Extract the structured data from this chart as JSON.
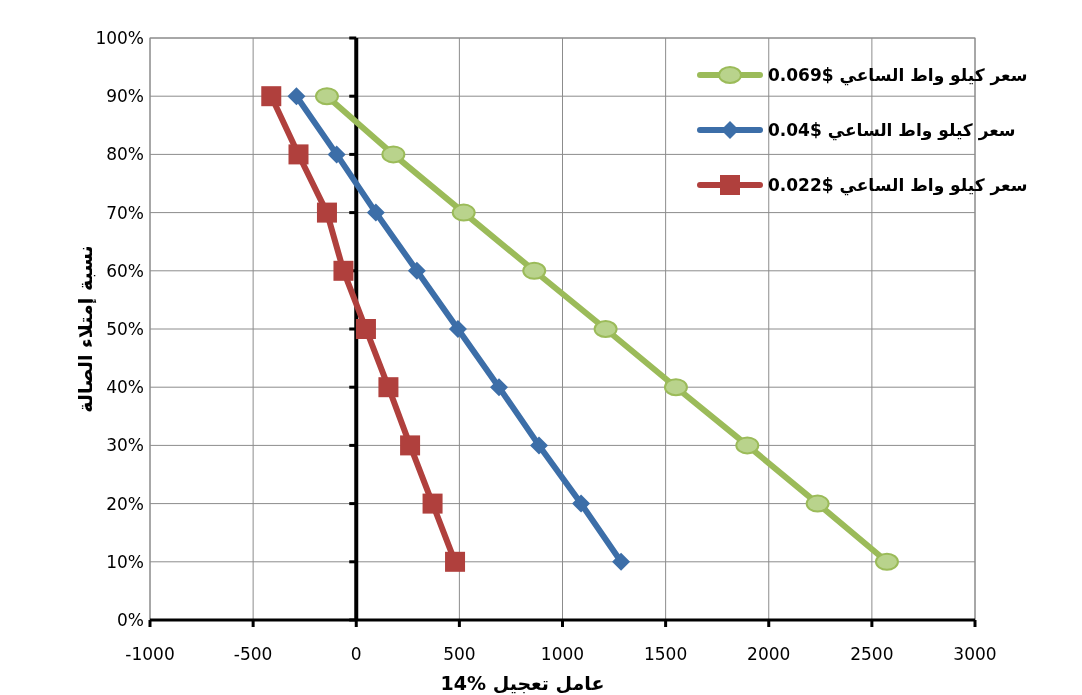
{
  "chart_data": {
    "type": "line",
    "xlabel": "عامل تعجيل %14",
    "ylabel": "نسبة إمتلاء الصالة",
    "xlim": [
      -1000,
      3000
    ],
    "xticks": [
      -1000,
      -500,
      0,
      500,
      1000,
      1500,
      2000,
      2500,
      3000
    ],
    "ylim": [
      0,
      100
    ],
    "yticks": [
      {
        "value": 0,
        "label": "0%"
      },
      {
        "value": 10,
        "label": "10%"
      },
      {
        "value": 20,
        "label": "20%"
      },
      {
        "value": 30,
        "label": "30%"
      },
      {
        "value": 40,
        "label": "40%"
      },
      {
        "value": 50,
        "label": "50%"
      },
      {
        "value": 60,
        "label": "60%"
      },
      {
        "value": 70,
        "label": "70%"
      },
      {
        "value": 80,
        "label": "80%"
      },
      {
        "value": 90,
        "label": "90%"
      },
      {
        "value": 100,
        "label": "100%"
      }
    ],
    "grid": true,
    "legend": "top right",
    "series": [
      {
        "name": "سعر كيلو واط الساعي $0.069",
        "color": "#9bbb59",
        "marker": "circle",
        "x": [
          -142,
          180,
          521,
          863,
          1209,
          1550,
          1896,
          2237,
          2573
        ],
        "values": [
          90,
          80,
          70,
          60,
          50,
          40,
          30,
          20,
          10
        ]
      },
      {
        "name": "سعر كيلو واط الساعي $0.04",
        "color": "#3c6ea8",
        "marker": "diamond",
        "x": [
          -290,
          -95,
          95,
          294,
          493,
          692,
          886,
          1090,
          1284
        ],
        "values": [
          90,
          80,
          70,
          60,
          50,
          40,
          30,
          20,
          10
        ]
      },
      {
        "name": "سعر كيلو واط الساعي $0.022",
        "color": "#b0403d",
        "marker": "square",
        "x": [
          -412,
          -280,
          -142,
          -62,
          47,
          156,
          261,
          370,
          479
        ],
        "values": [
          90,
          80,
          70,
          60,
          50,
          40,
          30,
          20,
          10
        ]
      }
    ]
  }
}
